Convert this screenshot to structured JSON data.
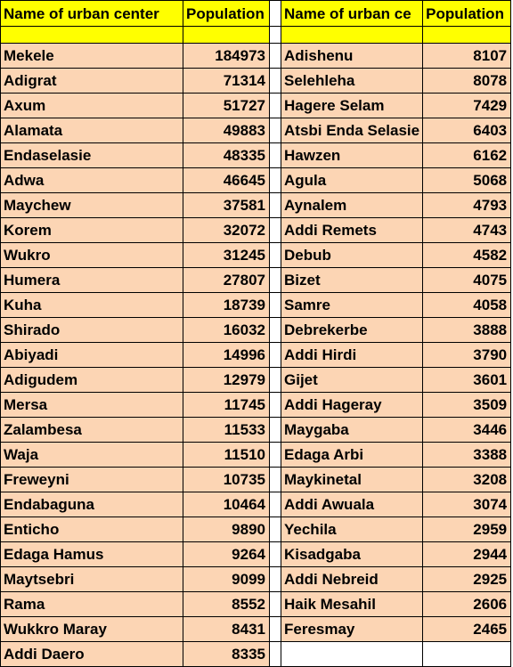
{
  "headers": {
    "left_name": "Name of urban center",
    "left_pop": "Population",
    "right_name": "Name of urban ce",
    "right_pop": "Population"
  },
  "left": [
    {
      "name": "Mekele",
      "pop": "184973"
    },
    {
      "name": "Adigrat",
      "pop": "71314"
    },
    {
      "name": "Axum",
      "pop": "51727"
    },
    {
      "name": "Alamata",
      "pop": "49883"
    },
    {
      "name": "Endaselasie",
      "pop": "48335"
    },
    {
      "name": "Adwa",
      "pop": "46645"
    },
    {
      "name": "Maychew",
      "pop": "37581"
    },
    {
      "name": "Korem",
      "pop": "32072"
    },
    {
      "name": "Wukro",
      "pop": "31245"
    },
    {
      "name": "Humera",
      "pop": "27807"
    },
    {
      "name": "Kuha",
      "pop": "18739"
    },
    {
      "name": "Shirado",
      "pop": "16032"
    },
    {
      "name": "Abiyadi",
      "pop": "14996"
    },
    {
      "name": "Adigudem",
      "pop": "12979"
    },
    {
      "name": "Mersa",
      "pop": "11745"
    },
    {
      "name": "Zalambesa",
      "pop": "11533"
    },
    {
      "name": "Waja",
      "pop": "11510"
    },
    {
      "name": "Freweyni",
      "pop": "10735"
    },
    {
      "name": "Endabaguna",
      "pop": "10464"
    },
    {
      "name": "Enticho",
      "pop": "9890"
    },
    {
      "name": "Edaga Hamus",
      "pop": "9264"
    },
    {
      "name": "Maytsebri",
      "pop": "9099"
    },
    {
      "name": "Rama",
      "pop": "8552"
    },
    {
      "name": "Wukkro Maray",
      "pop": "8431"
    },
    {
      "name": "Addi Daero",
      "pop": "8335"
    }
  ],
  "right": [
    {
      "name": "Adishenu",
      "pop": "8107"
    },
    {
      "name": "Selehleha",
      "pop": "8078"
    },
    {
      "name": "Hagere Selam",
      "pop": "7429"
    },
    {
      "name": "Atsbi Enda Selasie",
      "pop": "6403"
    },
    {
      "name": "Hawzen",
      "pop": "6162"
    },
    {
      "name": "Agula",
      "pop": "5068"
    },
    {
      "name": "Aynalem",
      "pop": "4793"
    },
    {
      "name": "Addi Remets",
      "pop": "4743"
    },
    {
      "name": "Debub",
      "pop": "4582"
    },
    {
      "name": "Bizet",
      "pop": "4075"
    },
    {
      "name": "Samre",
      "pop": "4058"
    },
    {
      "name": "Debrekerbe",
      "pop": "3888"
    },
    {
      "name": "Addi Hirdi",
      "pop": "3790"
    },
    {
      "name": "Gijet",
      "pop": "3601"
    },
    {
      "name": "Addi Hageray",
      "pop": "3509"
    },
    {
      "name": "Maygaba",
      "pop": "3446"
    },
    {
      "name": "Edaga Arbi",
      "pop": "3388"
    },
    {
      "name": "Maykinetal",
      "pop": "3208"
    },
    {
      "name": "Addi Awuala",
      "pop": "3074"
    },
    {
      "name": "Yechila",
      "pop": "2959"
    },
    {
      "name": "Kisadgaba",
      "pop": "2944"
    },
    {
      "name": "Addi Nebreid",
      "pop": "2925"
    },
    {
      "name": "Haik Mesahil",
      "pop": "2606"
    },
    {
      "name": "Feresmay",
      "pop": "2465"
    }
  ],
  "colors": {
    "header_fill": "#ffff00",
    "row_fill": "#fcd5b4"
  }
}
